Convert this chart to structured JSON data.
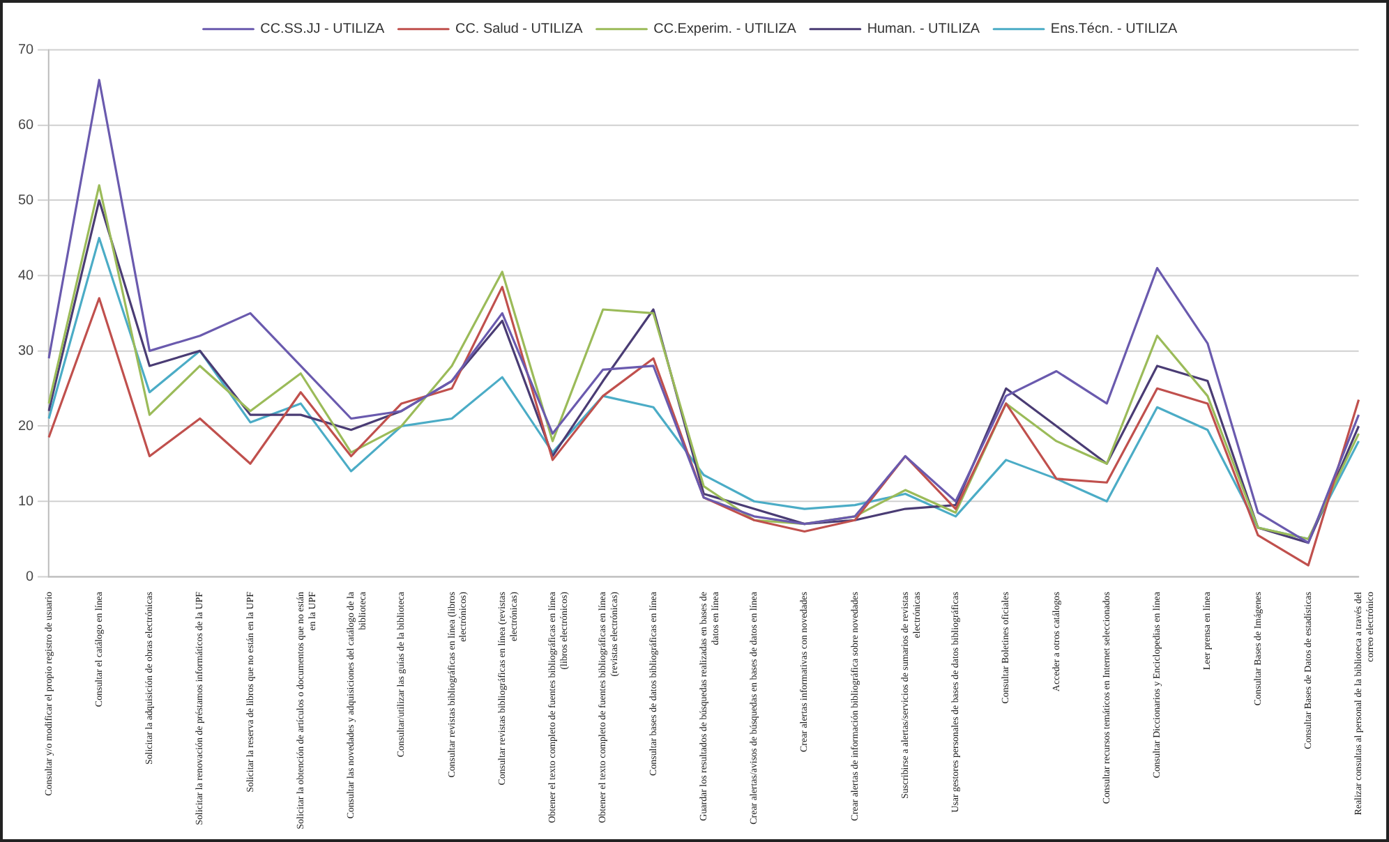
{
  "chart_data": {
    "type": "line",
    "categories": [
      "Consultar y/o modificar el propio registro de usuario",
      "Consultar el catálogo en línea",
      "Solicitar la adquisición de obras electrónicas",
      "Solicitar la renovación de préstamos informáticos de la UPF",
      "Solicitar la reserva de libros que no están en la UPF",
      "Solicitar la obtención de artículos o documentos que no están en la UPF",
      "Consultar las novedades y adquisiciones del catálogo de la biblioteca",
      "Consultar/utilizar las guías de la biblioteca",
      "Consultar revistas bibliográficas en línea (libros electrónicos)",
      "Consultar revistas bibliográficas en línea (revistas electrónicas)",
      "Obtener el texto completo de fuentes bibliográficas en línea (libros electrónicos)",
      "Obtener el texto completo de fuentes bibliográficas en línea (revistas electrónicas)",
      "Consultar bases de datos bibliográficas en línea",
      "Guardar los resultados de búsquedas realizadas en bases de datos en línea",
      "Crear alertas/avisos de búsquedas en bases de datos en línea",
      "Crear alertas informativas con novedades",
      "Crear alertas de información bibliográfica sobre novedades",
      "Suscribirse a alertas/servicios de sumarios de revistas electrónicas",
      "Usar gestores personales de bases de datos bibliográficas",
      "Consultar Boletines oficiales",
      "Acceder a otros catálogos",
      "Consultar recursos temáticos en Internet seleccionados",
      "Consultar Diccionarios y Enciclopedias en línea",
      "Leer prensa en línea",
      "Consultar Bases de Imágenes",
      "Consultar Bases de Datos de estadísticas",
      "Realizar consultas al personal de la biblioteca a través del correo electrónico"
    ],
    "series": [
      {
        "name": "CC.SS.JJ - UTILIZA",
        "color": "#6a5aae",
        "values": [
          29,
          66,
          30,
          32,
          35,
          28,
          21,
          22,
          26,
          35,
          19,
          27.5,
          28,
          10.5,
          8,
          7,
          8,
          16,
          10,
          24,
          27.3,
          23,
          41,
          31,
          8.5,
          4.5,
          21.5
        ]
      },
      {
        "name": "CC. Salud - UTILIZA",
        "color": "#c0504d",
        "values": [
          18.5,
          37,
          16,
          21,
          15,
          24.5,
          16,
          23,
          25,
          38.5,
          15.5,
          24,
          29,
          10.5,
          7.5,
          6,
          7.5,
          16,
          9,
          23,
          13,
          12.5,
          25,
          23,
          5.5,
          1.5,
          23.5
        ]
      },
      {
        "name": "CC.Experim. - UTILIZA",
        "color": "#9bbb59",
        "values": [
          23,
          52,
          21.5,
          28,
          22,
          27,
          16.5,
          20,
          28,
          40.5,
          18,
          35.5,
          35,
          12,
          7.5,
          7,
          8,
          11.5,
          8.5,
          23,
          18,
          15,
          32,
          24,
          6.5,
          5,
          19
        ]
      },
      {
        "name": "Human. - UTILIZA",
        "color": "#4a3c74",
        "values": [
          22,
          50,
          28,
          30,
          21.5,
          21.5,
          19.5,
          22,
          26,
          34,
          16,
          26,
          35.5,
          11,
          9,
          7,
          7.5,
          9,
          9.5,
          25,
          20,
          15,
          28,
          26,
          6.5,
          4.5,
          20
        ]
      },
      {
        "name": "Ens.Técn. - UTILIZA",
        "color": "#4bacc6",
        "values": [
          21,
          45,
          24.5,
          30,
          20.5,
          23,
          14,
          20,
          21,
          26.5,
          16.5,
          24,
          22.5,
          13.5,
          10,
          9,
          9.5,
          11,
          8,
          15.5,
          13,
          10,
          22.5,
          19.5,
          6.5,
          5,
          18
        ]
      }
    ],
    "ylim": [
      0,
      70
    ],
    "yticks": [
      0,
      10,
      20,
      30,
      40,
      50,
      60,
      70
    ],
    "grid": "y",
    "legend": "top",
    "marker": "none",
    "line_style": "solid"
  }
}
